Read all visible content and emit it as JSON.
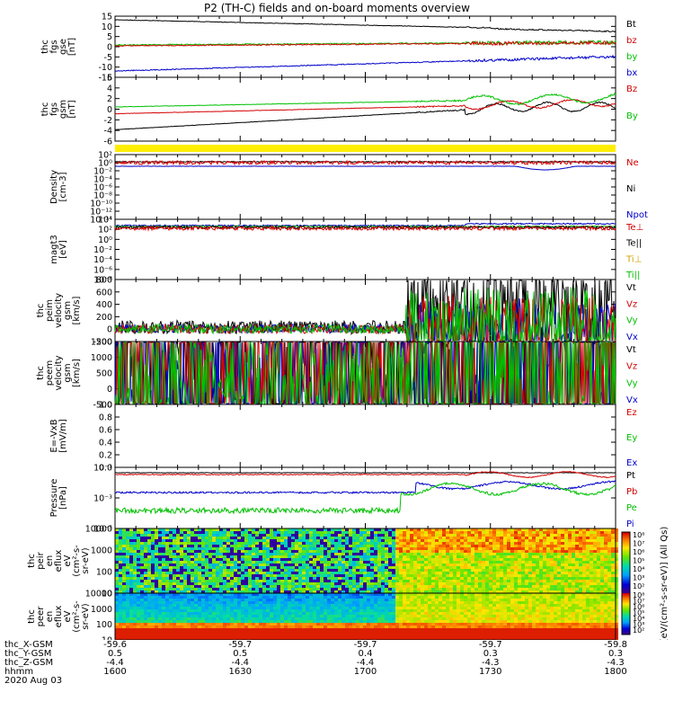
{
  "title": "P2 (TH-C) fields and on-board moments overview",
  "panels": [
    {
      "id": "fgs_gse",
      "ylabel": [
        "thc",
        "fgs",
        "gse",
        "[nT]"
      ],
      "ticks": [
        "15",
        "10",
        "5",
        "0",
        "-5",
        "-10",
        "-15"
      ],
      "legend": [
        {
          "t": "Bt",
          "c": "#000000"
        },
        {
          "t": "bz",
          "c": "#d40000"
        },
        {
          "t": "by",
          "c": "#00c000"
        },
        {
          "t": "bx",
          "c": "#0000c8"
        }
      ]
    },
    {
      "id": "fgs_gsm",
      "ylabel": [
        "thc",
        "fgs",
        "gsm",
        "[nT]"
      ],
      "ticks": [
        "6",
        "4",
        "2",
        "0",
        "-2",
        "-4",
        "-6"
      ],
      "legend": [
        {
          "t": "Bz",
          "c": "#d40000"
        },
        {
          "t": "By",
          "c": "#00c000"
        }
      ]
    },
    {
      "id": "density",
      "ylabel": [
        "Density",
        "[cm-3]"
      ],
      "ticks": [
        "10²",
        "10⁰",
        "10⁻²",
        "10⁻⁴",
        "10⁻⁶",
        "10⁻⁸",
        "10⁻¹⁰",
        "10⁻¹²",
        "10⁻¹⁴"
      ],
      "legend": [
        {
          "t": "Ne",
          "c": "#d40000"
        },
        {
          "t": "Ni",
          "c": "#000000"
        },
        {
          "t": "Npot",
          "c": "#0000c8"
        }
      ]
    },
    {
      "id": "temp",
      "ylabel": [
        "magt3",
        "[eV]"
      ],
      "ticks": [
        "10⁴",
        "10²",
        "10⁰",
        "10⁻²",
        "10⁻⁴",
        "10⁻⁶",
        "10⁻⁸"
      ],
      "legend": [
        {
          "t": "Te⊥",
          "c": "#d40000"
        },
        {
          "t": "Te||",
          "c": "#000000"
        },
        {
          "t": "Ti⊥",
          "c": "#d4a000"
        },
        {
          "t": "Ti||",
          "c": "#00c000"
        }
      ]
    },
    {
      "id": "peim",
      "ylabel": [
        "thc",
        "peim",
        "velocity",
        "gsm",
        "[km/s]"
      ],
      "ticks": [
        "800",
        "600",
        "400",
        "200",
        "0",
        "-200"
      ],
      "legend": [
        {
          "t": "Vt",
          "c": "#000000"
        },
        {
          "t": "Vz",
          "c": "#d40000"
        },
        {
          "t": "Vy",
          "c": "#00c000"
        },
        {
          "t": "Vx",
          "c": "#0000c8"
        }
      ]
    },
    {
      "id": "peem",
      "ylabel": [
        "thc",
        "peem",
        "velocity",
        "gsm",
        "[km/s]"
      ],
      "ticks": [
        "1500",
        "1000",
        "500",
        "0",
        "-500"
      ],
      "legend": [
        {
          "t": "Vt",
          "c": "#000000"
        },
        {
          "t": "Vz",
          "c": "#d40000"
        },
        {
          "t": "Vy",
          "c": "#00c000"
        },
        {
          "t": "Vx",
          "c": "#0000c8"
        }
      ]
    },
    {
      "id": "efield",
      "ylabel": [
        "E=-VxB",
        "[mV/m]"
      ],
      "ticks": [
        "1.0",
        "0.8",
        "0.6",
        "0.4",
        "0.2",
        "0.0"
      ],
      "legend": [
        {
          "t": "Ez",
          "c": "#d40000"
        },
        {
          "t": "Ey",
          "c": "#00c000"
        },
        {
          "t": "Ex",
          "c": "#0000c8"
        }
      ]
    },
    {
      "id": "pressure",
      "ylabel": [
        "Pressure",
        "[nPa]"
      ],
      "ticks": [
        "10⁻¹",
        "10⁻³",
        "10⁻⁵"
      ],
      "legend": [
        {
          "t": "Pt",
          "c": "#000000"
        },
        {
          "t": "Pb",
          "c": "#d40000"
        },
        {
          "t": "Pe",
          "c": "#00c000"
        },
        {
          "t": "Pi",
          "c": "#0000c8"
        }
      ]
    },
    {
      "id": "peir",
      "ylabel": [
        "thc",
        "peir",
        "en",
        "eflux",
        "eV",
        "(cm²-s-",
        "sr-eV)"
      ],
      "ticks": [
        "10000",
        "1000",
        "100",
        "10"
      ],
      "legend": []
    },
    {
      "id": "peer",
      "ylabel": [
        "thc",
        "peer",
        "en",
        "eflux",
        "eV",
        "(cm²-s-",
        "sr-eV)"
      ],
      "ticks": [
        "10000",
        "1000",
        "100",
        "10"
      ],
      "legend": []
    }
  ],
  "colorbar": {
    "label": "[eV/(cm²-s-sr-eV)] (All Qs)",
    "ticks": [
      "10⁸",
      "10⁷",
      "10⁶",
      "10⁵",
      "10⁴",
      "10³",
      "10²",
      "10⁸",
      "10⁷",
      "10⁶",
      "10⁵",
      "10⁴",
      "10³",
      "10²"
    ]
  },
  "xaxis": {
    "rows": [
      {
        "label": "thc_X-GSM",
        "values": [
          "-59.6",
          "-59.7",
          "-59.7",
          "-59.7",
          "-59.8"
        ]
      },
      {
        "label": "thc_Y-GSM",
        "values": [
          "0.5",
          "0.5",
          "0.4",
          "0.3",
          "0.3"
        ]
      },
      {
        "label": "thc_Z-GSM",
        "values": [
          "-4.4",
          "-4.4",
          "-4.4",
          "-4.3",
          "-4.3"
        ]
      },
      {
        "label": "hhmm",
        "values": [
          "1600",
          "1630",
          "1700",
          "1730",
          "1800"
        ]
      }
    ],
    "date": "2020 Aug 03"
  },
  "chart_data": {
    "type": "line",
    "title": "P2 (TH-C) fields and on-board moments overview",
    "x": [
      "1600",
      "1630",
      "1700",
      "1730",
      "1800"
    ],
    "series": [
      {
        "panel": "fgs_gse",
        "name": "Bt",
        "values": [
          15,
          13,
          10,
          9,
          10
        ]
      },
      {
        "panel": "fgs_gse",
        "name": "bz",
        "values": [
          1,
          2,
          2,
          3,
          2
        ]
      },
      {
        "panel": "fgs_gse",
        "name": "by",
        "values": [
          1,
          2,
          2,
          4,
          2
        ]
      },
      {
        "panel": "fgs_gse",
        "name": "bx",
        "values": [
          -14,
          -12,
          -9,
          -5,
          -8
        ]
      },
      {
        "panel": "fgs_gsm",
        "name": "Bz",
        "values": [
          -2,
          -1,
          0,
          2,
          0
        ]
      },
      {
        "panel": "fgs_gsm",
        "name": "By",
        "values": [
          0.5,
          1,
          1,
          3,
          0
        ]
      },
      {
        "panel": "peim",
        "name": "Vt",
        "values": [
          20,
          20,
          20,
          300,
          100
        ]
      },
      {
        "panel": "peem",
        "name": "Vt",
        "values": [
          300,
          300,
          300,
          700,
          400
        ]
      }
    ],
    "ylim": [
      -15,
      15
    ]
  }
}
